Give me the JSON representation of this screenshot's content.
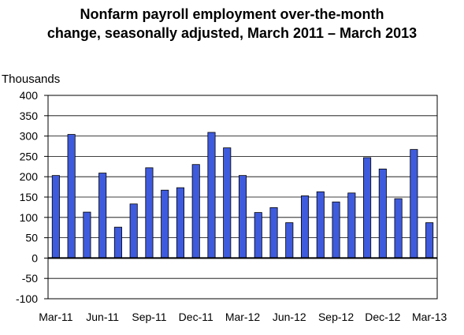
{
  "title_line1": "Nonfarm payroll employment over-the-month",
  "title_line2": "change, seasonally adjusted, March 2011 – March  2013",
  "chart_data": {
    "type": "bar",
    "title": "Nonfarm payroll employment over-the-month change, seasonally adjusted, March 2011 – March  2013",
    "ylabel": "Thousands",
    "xlabel": "",
    "ylim": [
      -100,
      400
    ],
    "yticks": [
      400,
      350,
      300,
      250,
      200,
      150,
      100,
      50,
      0,
      -50,
      -100
    ],
    "grid": true,
    "bar_color": "#3f5bdd",
    "categories": [
      "Mar-11",
      "Apr-11",
      "May-11",
      "Jun-11",
      "Jul-11",
      "Aug-11",
      "Sep-11",
      "Oct-11",
      "Nov-11",
      "Dec-11",
      "Jan-12",
      "Feb-12",
      "Mar-12",
      "Apr-12",
      "May-12",
      "Jun-12",
      "Jul-12",
      "Aug-12",
      "Sep-12",
      "Oct-12",
      "Nov-12",
      "Dec-12",
      "Jan-13",
      "Feb-13",
      "Mar-13"
    ],
    "values": [
      203,
      304,
      113,
      209,
      76,
      133,
      222,
      167,
      173,
      230,
      309,
      271,
      203,
      112,
      124,
      87,
      153,
      163,
      138,
      160,
      247,
      219,
      146,
      267,
      87
    ],
    "x_tick_labels": [
      "Mar-11",
      "Jun-11",
      "Sep-11",
      "Dec-11",
      "Mar-12",
      "Jun-12",
      "Sep-12",
      "Dec-12",
      "Mar-13"
    ]
  }
}
